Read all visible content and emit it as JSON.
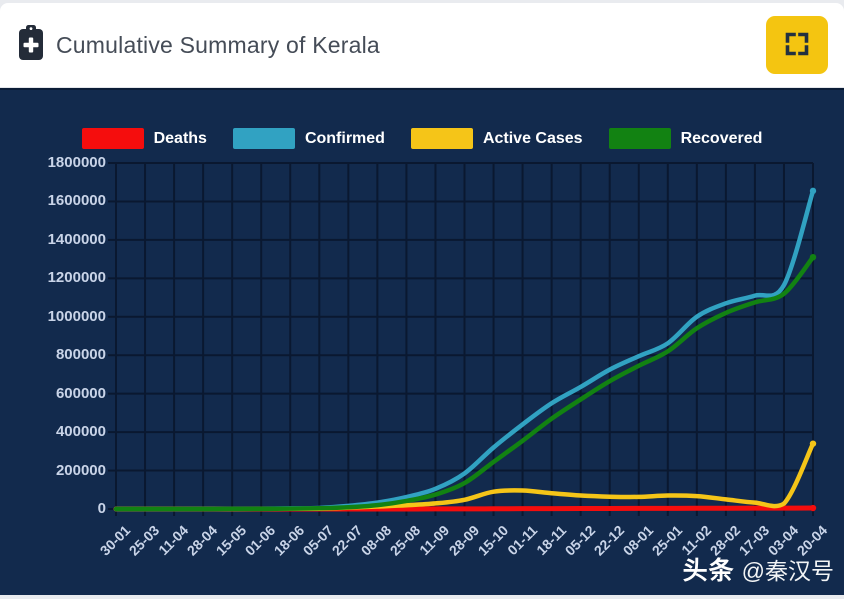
{
  "header": {
    "title": "Cumulative Summary of Kerala",
    "title_icon": "medical-clipboard-icon",
    "fullscreen_icon": "fullscreen-expand-icon"
  },
  "watermark": {
    "brand": "头条",
    "handle": "@秦汉号"
  },
  "colors": {
    "page_bg": "#e9ebef",
    "header_bg": "#ffffff",
    "title_text": "#454c57",
    "button_bg": "#f4c511",
    "button_icon": "#233140",
    "panel_bg": "#122a4d",
    "grid": "#0a1830",
    "axis_label": "#c9d4e8",
    "deaths": "#f50d0d",
    "confirmed": "#31a2c2",
    "active": "#f5c518",
    "recovered": "#128212"
  },
  "chart_data": {
    "type": "line",
    "title": "Cumulative Summary of Kerala",
    "categories": [
      "30-01",
      "25-03",
      "11-04",
      "28-04",
      "15-05",
      "01-06",
      "18-06",
      "05-07",
      "22-07",
      "08-08",
      "25-08",
      "11-09",
      "28-09",
      "15-10",
      "01-11",
      "18-11",
      "05-12",
      "22-12",
      "08-01",
      "25-01",
      "11-02",
      "28-02",
      "17-03",
      "03-04",
      "20-04"
    ],
    "series": [
      {
        "name": "Deaths",
        "color": "#f50d0d",
        "values": [
          0,
          1,
          2,
          4,
          8,
          15,
          21,
          25,
          37,
          60,
          105,
          350,
          700,
          1100,
          1650,
          2000,
          2300,
          2650,
          3000,
          3400,
          3800,
          4100,
          4300,
          4600,
          5000
        ]
      },
      {
        "name": "Confirmed",
        "color": "#31a2c2",
        "values": [
          1,
          10,
          300,
          450,
          600,
          1300,
          3000,
          5500,
          16000,
          33000,
          62000,
          105000,
          185000,
          320000,
          440000,
          550000,
          635000,
          725000,
          795000,
          862000,
          1000000,
          1070000,
          1110000,
          1165000,
          1655000
        ]
      },
      {
        "name": "Active Cases",
        "color": "#f5c518",
        "values": [
          0,
          5,
          150,
          150,
          200,
          500,
          1200,
          1500,
          7000,
          13000,
          19500,
          29000,
          48000,
          90000,
          96000,
          82000,
          70000,
          64000,
          63000,
          70000,
          67000,
          50000,
          33000,
          28000,
          340000
        ]
      },
      {
        "name": "Recovered",
        "color": "#128212",
        "values": [
          0,
          2,
          60,
          250,
          450,
          800,
          1800,
          4000,
          9000,
          20000,
          42000,
          75000,
          135000,
          245000,
          355000,
          470000,
          570000,
          665000,
          745000,
          820000,
          940000,
          1020000,
          1075000,
          1120000,
          1310000
        ]
      }
    ],
    "ylim": [
      0,
      1800000
    ],
    "yticks": [
      0,
      200000,
      400000,
      600000,
      800000,
      1000000,
      1200000,
      1400000,
      1600000,
      1800000
    ],
    "xlabel": "",
    "ylabel": "",
    "grid": true,
    "legend_position": "top",
    "x_label_rotation": -45
  }
}
